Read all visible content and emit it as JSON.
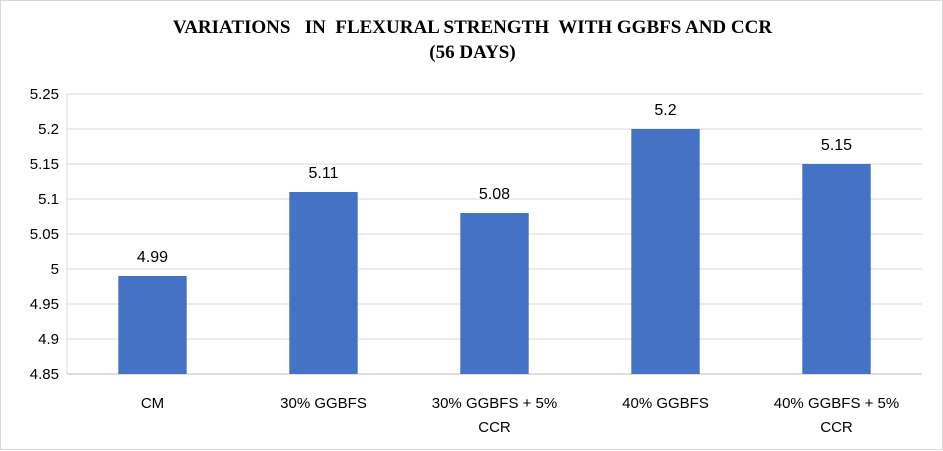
{
  "chart_data": {
    "type": "bar",
    "title_lines": [
      "VARIATIONS   IN  FLEXURAL STRENGTH  WITH GGBFS AND CCR",
      "(56 DAYS)"
    ],
    "categories": [
      [
        "CM"
      ],
      [
        "30% GGBFS"
      ],
      [
        "30% GGBFS + 5%",
        "CCR"
      ],
      [
        "40% GGBFS"
      ],
      [
        "40% GGBFS + 5%",
        "CCR"
      ]
    ],
    "values": [
      4.99,
      5.11,
      5.08,
      5.2,
      5.15
    ],
    "data_labels": [
      "4.99",
      "5.11",
      "5.08",
      "5.2",
      "5.15"
    ],
    "yticks": [
      "4.85",
      "4.9",
      "4.95",
      "5",
      "5.05",
      "5.1",
      "5.15",
      "5.2",
      "5.25"
    ],
    "ylim": [
      4.85,
      5.25
    ],
    "grid": true,
    "legend": "none",
    "bar_color": "#4472c4",
    "grid_color": "#d9d9d9"
  }
}
